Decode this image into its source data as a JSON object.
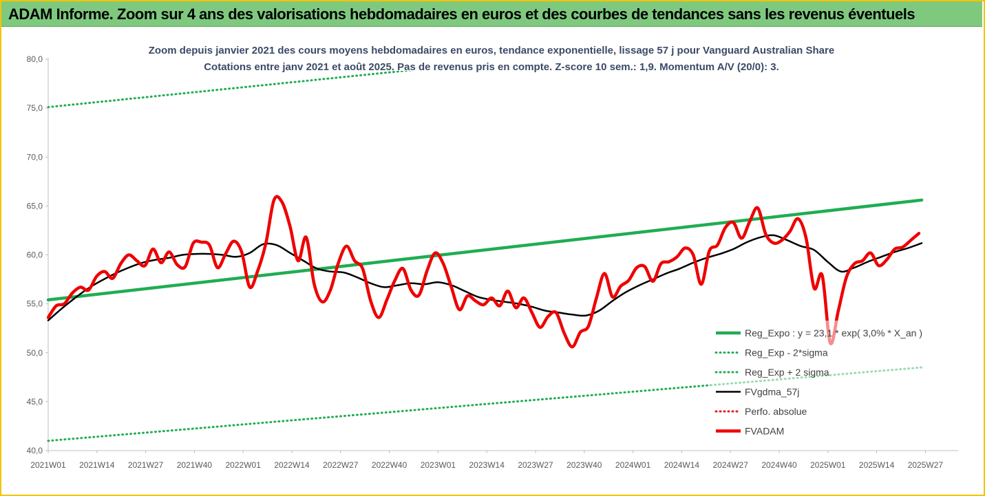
{
  "banner": {
    "title": "ADAM Informe. Zoom sur 4 ans des valorisations hebdomadaires en euros et des courbes de tendances sans les revenus éventuels"
  },
  "colors": {
    "banner_bg": "#7fc97f",
    "frame": "#f5c400",
    "trend": "#1fad52",
    "smooth": "#000000",
    "price": "#ee0000",
    "perfo": "#e31a1c"
  },
  "chart_data": {
    "type": "line",
    "title": "Zoom depuis janvier 2021 des cours moyens hebdomadaires en euros, tendance exponentielle, lissage 57 j pour Vanguard Australian Share",
    "subtitle": "Cotations entre janv 2021 et août 2025.  Pas de revenus pris en compte. Z-score 10 sem.: 1,9. Momentum A/V (20/0): 3.",
    "ylim": [
      40,
      80
    ],
    "grid": false,
    "legend_position": "bottom-right",
    "y_ticks": [
      "40,0",
      "45,0",
      "50,0",
      "55,0",
      "60,0",
      "65,0",
      "70,0",
      "75,0",
      "80,0"
    ],
    "x_ticks": [
      "2021W01",
      "2021W14",
      "2021W27",
      "2021W40",
      "2022W01",
      "2022W14",
      "2022W27",
      "2022W40",
      "2023W01",
      "2023W14",
      "2023W27",
      "2023W40",
      "2024W01",
      "2024W14",
      "2024W27",
      "2024W40",
      "2025W01",
      "2025W14",
      "2025W27"
    ],
    "weeks_total": 234,
    "series": [
      {
        "name": "Reg_Expo : y = 23,1 * exp( 3,0% *  X_an )",
        "style": "solid-thick",
        "color": "#1fad52",
        "points": [
          [
            0,
            55.4
          ],
          [
            233,
            65.6
          ]
        ]
      },
      {
        "name": "Reg_Exp - 2*sigma",
        "style": "dotted",
        "color": "#1fad52",
        "points": [
          [
            0,
            41.0
          ],
          [
            233,
            48.5
          ]
        ]
      },
      {
        "name": "Reg_Exp + 2 sigma",
        "style": "dotted",
        "color": "#1fad52",
        "points": [
          [
            0,
            75.1
          ],
          [
            233,
            84.2
          ]
        ]
      },
      {
        "name": "FVgdma_57j",
        "style": "solid",
        "color": "#000000",
        "points": [
          [
            0,
            53.3
          ],
          [
            5,
            54.5
          ],
          [
            10,
            55.6
          ],
          [
            15,
            56.6
          ],
          [
            20,
            57.4
          ],
          [
            25,
            58.1
          ],
          [
            30,
            58.7
          ],
          [
            35,
            59.2
          ],
          [
            40,
            59.5
          ],
          [
            45,
            59.7
          ],
          [
            50,
            60.0
          ],
          [
            55,
            60.1
          ],
          [
            60,
            60.1
          ],
          [
            65,
            60.0
          ],
          [
            70,
            59.8
          ],
          [
            75,
            60.2
          ],
          [
            80,
            61.1
          ],
          [
            85,
            61.0
          ],
          [
            90,
            60.2
          ],
          [
            95,
            59.4
          ],
          [
            100,
            58.6
          ],
          [
            105,
            58.3
          ],
          [
            110,
            58.2
          ],
          [
            115,
            57.7
          ],
          [
            120,
            57.1
          ],
          [
            125,
            56.7
          ],
          [
            130,
            56.9
          ],
          [
            135,
            57.1
          ],
          [
            140,
            57.0
          ],
          [
            145,
            57.2
          ],
          [
            150,
            56.9
          ],
          [
            155,
            56.3
          ],
          [
            160,
            55.7
          ],
          [
            165,
            55.4
          ],
          [
            170,
            55.2
          ],
          [
            175,
            55.0
          ],
          [
            180,
            54.7
          ],
          [
            185,
            54.3
          ],
          [
            190,
            54.1
          ],
          [
            195,
            53.9
          ],
          [
            200,
            53.8
          ],
          [
            205,
            54.3
          ],
          [
            210,
            55.3
          ],
          [
            215,
            56.2
          ],
          [
            220,
            56.9
          ],
          [
            225,
            57.5
          ],
          [
            230,
            58.1
          ],
          [
            235,
            58.6
          ],
          [
            240,
            59.2
          ],
          [
            245,
            59.7
          ],
          [
            250,
            60.1
          ],
          [
            255,
            60.6
          ],
          [
            260,
            61.3
          ],
          [
            265,
            61.8
          ],
          [
            270,
            62.0
          ],
          [
            275,
            61.5
          ],
          [
            280,
            60.9
          ],
          [
            285,
            60.5
          ],
          [
            290,
            59.3
          ],
          [
            295,
            58.3
          ],
          [
            300,
            58.7
          ],
          [
            305,
            59.3
          ],
          [
            310,
            59.8
          ],
          [
            315,
            60.3
          ],
          [
            320,
            60.7
          ],
          [
            325,
            61.2
          ]
        ]
      },
      {
        "name": "Perfo. absolue",
        "style": "dotted",
        "color": "#e31a1c",
        "points": []
      },
      {
        "name": "FVADAM",
        "style": "solid-thick",
        "color": "#ee0000",
        "points": [
          [
            0,
            53.6
          ],
          [
            3,
            54.8
          ],
          [
            6,
            55.0
          ],
          [
            9,
            56.1
          ],
          [
            12,
            56.7
          ],
          [
            15,
            56.4
          ],
          [
            18,
            57.8
          ],
          [
            21,
            58.3
          ],
          [
            24,
            57.6
          ],
          [
            27,
            59.1
          ],
          [
            30,
            60.0
          ],
          [
            33,
            59.4
          ],
          [
            36,
            58.9
          ],
          [
            39,
            60.6
          ],
          [
            42,
            59.2
          ],
          [
            45,
            60.3
          ],
          [
            48,
            59.0
          ],
          [
            51,
            58.8
          ],
          [
            54,
            61.2
          ],
          [
            57,
            61.3
          ],
          [
            60,
            61.0
          ],
          [
            63,
            58.7
          ],
          [
            66,
            60.1
          ],
          [
            69,
            61.4
          ],
          [
            72,
            60.3
          ],
          [
            75,
            56.7
          ],
          [
            78,
            58.4
          ],
          [
            81,
            61.2
          ],
          [
            84,
            65.6
          ],
          [
            87,
            65.4
          ],
          [
            90,
            62.9
          ],
          [
            93,
            59.4
          ],
          [
            96,
            61.8
          ],
          [
            99,
            57.0
          ],
          [
            102,
            55.2
          ],
          [
            105,
            56.4
          ],
          [
            108,
            59.2
          ],
          [
            111,
            60.9
          ],
          [
            114,
            59.4
          ],
          [
            117,
            58.6
          ],
          [
            120,
            55.3
          ],
          [
            123,
            53.6
          ],
          [
            126,
            55.4
          ],
          [
            129,
            57.4
          ],
          [
            132,
            58.6
          ],
          [
            135,
            56.4
          ],
          [
            138,
            55.9
          ],
          [
            141,
            58.4
          ],
          [
            144,
            60.2
          ],
          [
            147,
            59.1
          ],
          [
            150,
            56.7
          ],
          [
            153,
            54.4
          ],
          [
            156,
            55.8
          ],
          [
            159,
            55.3
          ],
          [
            162,
            54.9
          ],
          [
            165,
            55.6
          ],
          [
            168,
            54.8
          ],
          [
            171,
            56.3
          ],
          [
            174,
            54.6
          ],
          [
            177,
            55.6
          ],
          [
            180,
            54.1
          ],
          [
            183,
            52.6
          ],
          [
            186,
            53.7
          ],
          [
            189,
            54.1
          ],
          [
            192,
            52.0
          ],
          [
            195,
            50.6
          ],
          [
            198,
            52.1
          ],
          [
            201,
            52.7
          ],
          [
            204,
            55.6
          ],
          [
            207,
            58.1
          ],
          [
            210,
            55.7
          ],
          [
            213,
            56.8
          ],
          [
            216,
            57.4
          ],
          [
            219,
            58.7
          ],
          [
            222,
            58.8
          ],
          [
            225,
            57.3
          ],
          [
            228,
            59.1
          ],
          [
            231,
            59.3
          ],
          [
            234,
            59.8
          ],
          [
            237,
            60.7
          ],
          [
            240,
            60.0
          ],
          [
            243,
            57.0
          ],
          [
            246,
            60.4
          ],
          [
            249,
            61.0
          ],
          [
            252,
            62.8
          ],
          [
            255,
            63.3
          ],
          [
            258,
            61.7
          ],
          [
            261,
            63.4
          ],
          [
            264,
            64.8
          ],
          [
            267,
            62.1
          ],
          [
            270,
            61.2
          ],
          [
            273,
            61.5
          ],
          [
            276,
            62.4
          ],
          [
            279,
            63.7
          ],
          [
            282,
            61.7
          ],
          [
            285,
            56.6
          ],
          [
            288,
            57.9
          ],
          [
            291,
            51.0
          ],
          [
            294,
            54.3
          ],
          [
            297,
            57.7
          ],
          [
            300,
            59.1
          ],
          [
            303,
            59.4
          ],
          [
            306,
            60.2
          ],
          [
            309,
            58.9
          ],
          [
            312,
            59.5
          ],
          [
            315,
            60.6
          ],
          [
            318,
            60.8
          ],
          [
            321,
            61.5
          ],
          [
            324,
            62.2
          ]
        ]
      }
    ]
  }
}
